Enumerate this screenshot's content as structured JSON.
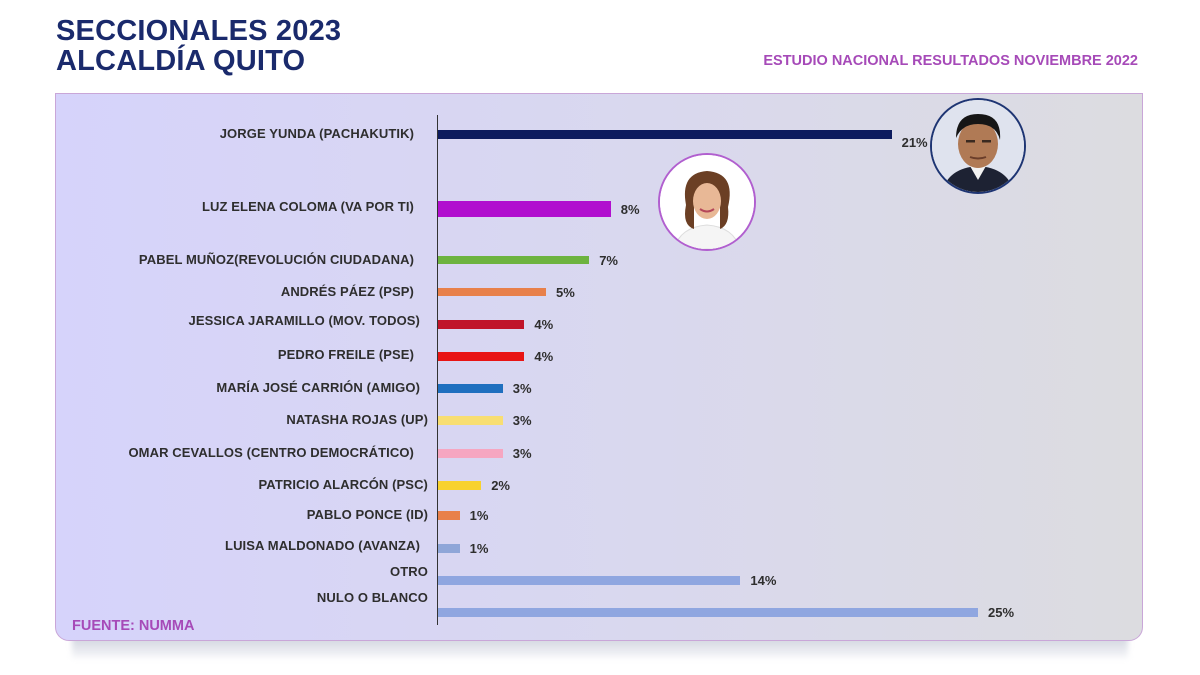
{
  "header": {
    "title_line1": "SECCIONALES 2023",
    "title_line2": "ALCALDÍA QUITO",
    "subtitle": "ESTUDIO NACIONAL RESULTADOS NOVIEMBRE 2022"
  },
  "source": "FUENTE: NUMMA",
  "chart_data": {
    "type": "bar",
    "orientation": "horizontal",
    "title": "SECCIONALES 2023 ALCALDÍA QUITO",
    "xlabel": "",
    "ylabel": "",
    "xlim": [
      0,
      25
    ],
    "grid": false,
    "categories": [
      "JORGE YUNDA (PACHAKUTIK)",
      "LUZ ELENA COLOMA (VA POR TI)",
      "PABEL MUÑOZ(REVOLUCIÓN CIUDADANA)",
      "ANDRÉS PÁEZ (PSP)",
      "JESSICA JARAMILLO (MOV. TODOS)",
      "PEDRO FREILE (PSE)",
      "MARÍA JOSÉ CARRIÓN (AMIGO)",
      "NATASHA ROJAS (UP)",
      "OMAR CEVALLOS (CENTRO DEMOCRÁTICO)",
      "PATRICIO ALARCÓN (PSC)",
      "PABLO PONCE (ID)",
      "LUISA MALDONADO (AVANZA)",
      "OTRO",
      "NULO O BLANCO"
    ],
    "values": [
      21,
      8,
      7,
      5,
      4,
      4,
      3,
      3,
      3,
      2,
      1,
      1,
      14,
      25
    ],
    "value_labels": [
      "21%",
      "8%",
      "7%",
      "5%",
      "4%",
      "4%",
      "3%",
      "3%",
      "3%",
      "2%",
      "1%",
      "1%",
      "14%",
      "25%"
    ],
    "colors": [
      "#0d1b5e",
      "#b10fcf",
      "#6db33f",
      "#e8804a",
      "#c0142a",
      "#e81414",
      "#1f6fbf",
      "#f8de72",
      "#f6a6c1",
      "#f8d22e",
      "#e8804a",
      "#8fa6d8",
      "#8fa6e0",
      "#8fa6e0"
    ]
  },
  "photos": {
    "p1": "jorge-yunda-photo",
    "p2": "luz-elena-coloma-photo"
  }
}
